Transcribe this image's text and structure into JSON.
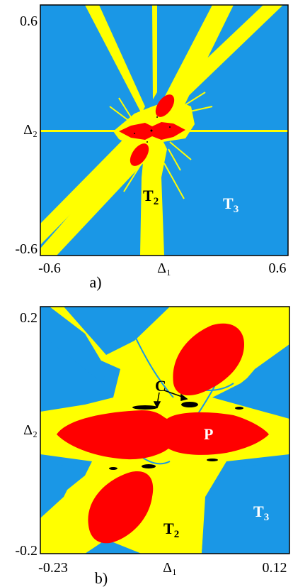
{
  "figure": {
    "colors": {
      "blue": "#1a97e6",
      "yellow": "#ffff00",
      "red": "#ff0000",
      "black": "#000000"
    },
    "panel_a": {
      "caption": "a)",
      "x_min": "-0.6",
      "x_max": "0.6",
      "y_min": "-0.6",
      "y_max": "0.6",
      "xlabel": "Δ₁",
      "ylabel": "Δ₂",
      "region_T2": "T",
      "region_T2_sub": "2",
      "region_T3": "T",
      "region_T3_sub": "3"
    },
    "panel_b": {
      "caption": "b)",
      "x_min": "-0.23",
      "x_max": "0.12",
      "y_min": "-0.2",
      "y_max": "0.2",
      "xlabel": "Δ₁",
      "ylabel": "Δ₂",
      "region_C": "C",
      "region_P": "P",
      "region_T2": "T",
      "region_T2_sub": "2",
      "region_T3": "T",
      "region_T3_sub": "3"
    }
  }
}
